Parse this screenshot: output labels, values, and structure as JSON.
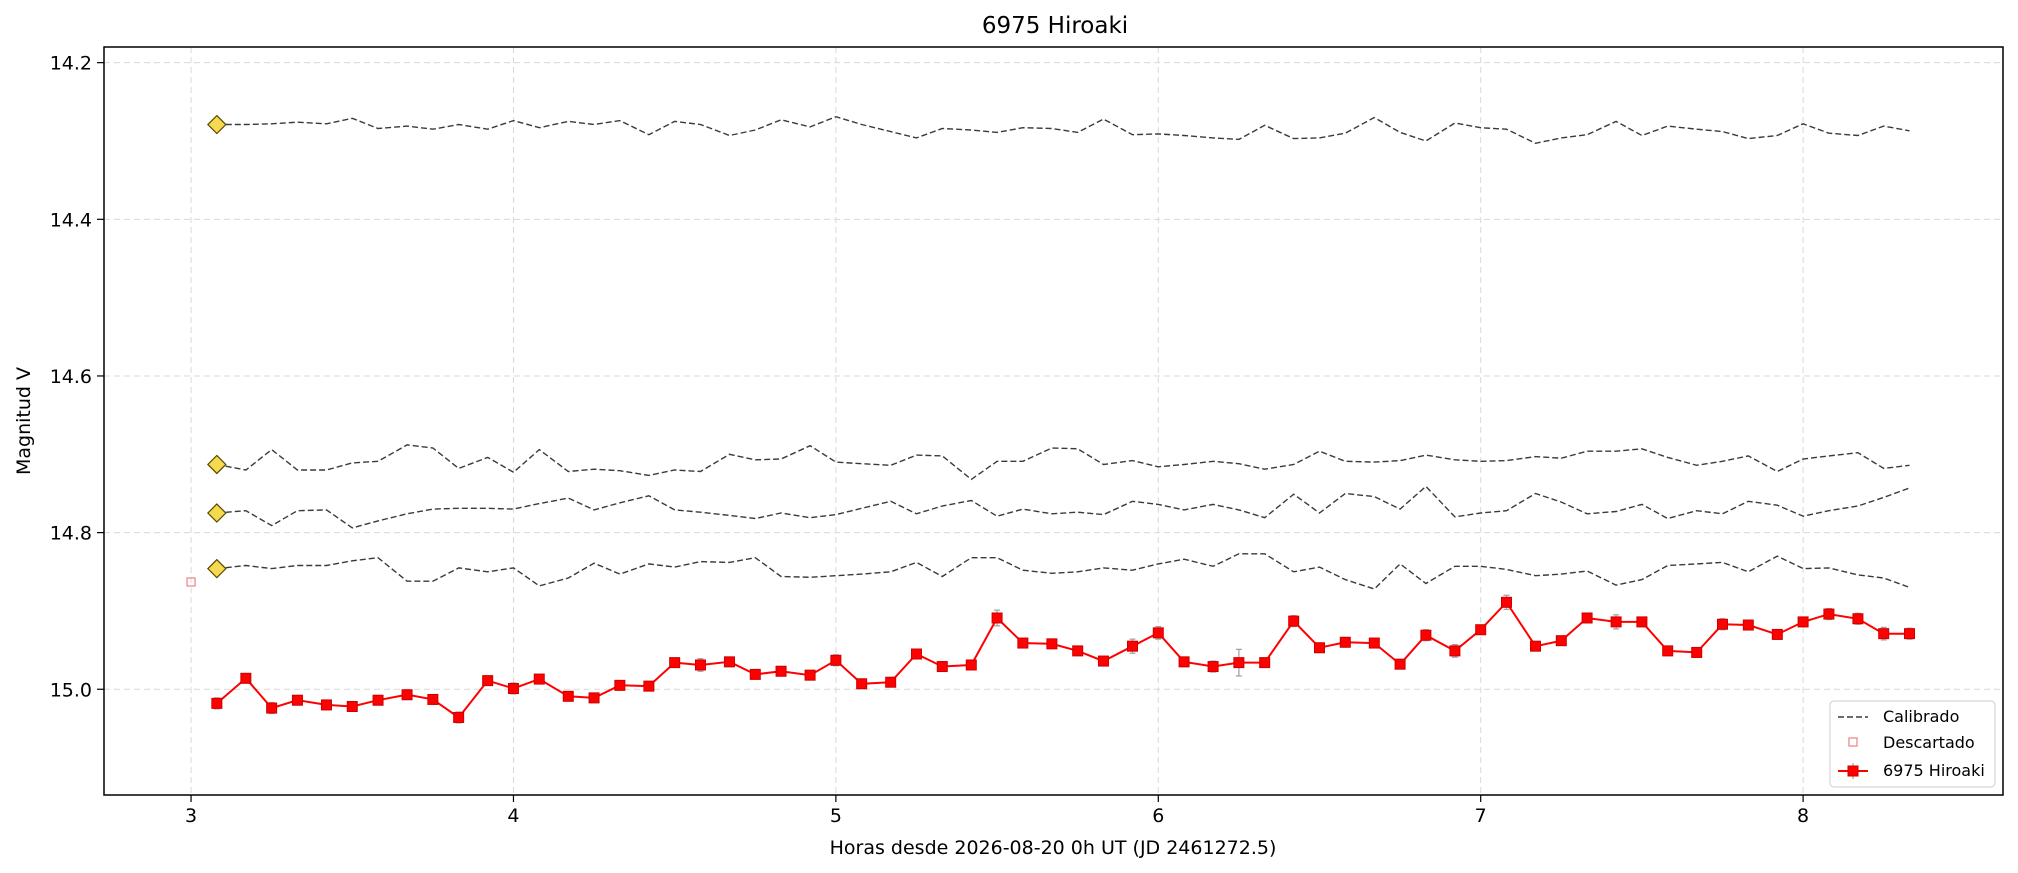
{
  "chart_data": {
    "type": "line",
    "title": "6975 Hiroaki",
    "xlabel": "Horas desde 2026-08-20 0h UT (JD 2461272.5)",
    "ylabel": "Magnitud V",
    "xlim": [
      2.73,
      8.62
    ],
    "ylim": [
      15.135,
      14.18
    ],
    "y_inverted": true,
    "xticks": [
      "3",
      "4",
      "5",
      "6",
      "7",
      "8"
    ],
    "yticks": [
      "14.2",
      "14.4",
      "14.6",
      "14.8",
      "15.0"
    ],
    "grid": true,
    "legend_position": "lower right",
    "colors": {
      "calibrated": "#3a3a3a",
      "discarded": "#f08080",
      "target": "#ff0000",
      "star_marker": "#f5d94e",
      "errorbar": "#9e9e9e"
    },
    "x": [
      3.08,
      3.17,
      3.25,
      3.33,
      3.42,
      3.5,
      3.58,
      3.67,
      3.75,
      3.83,
      3.92,
      4.0,
      4.08,
      4.17,
      4.25,
      4.33,
      4.42,
      4.5,
      4.58,
      4.67,
      4.75,
      4.83,
      4.92,
      5.0,
      5.08,
      5.17,
      5.25,
      5.33,
      5.42,
      5.5,
      5.58,
      5.67,
      5.75,
      5.83,
      5.92,
      6.0,
      6.08,
      6.17,
      6.25,
      6.33,
      6.42,
      6.5,
      6.58,
      6.67,
      6.75,
      6.83,
      6.92,
      7.0,
      7.08,
      7.17,
      7.25,
      7.33,
      7.42,
      7.5,
      7.58,
      7.67,
      7.75,
      7.83,
      7.92,
      8.0,
      8.08,
      8.17,
      8.25,
      8.33
    ],
    "series": [
      {
        "name": "Calibrado",
        "style": "dashed",
        "values": [
          14.279,
          14.279,
          14.278,
          14.276,
          14.278,
          14.271,
          14.284,
          14.281,
          14.285,
          14.279,
          14.285,
          14.274,
          14.283,
          14.275,
          14.279,
          14.274,
          14.292,
          14.275,
          14.279,
          14.293,
          14.286,
          14.273,
          14.282,
          14.269,
          14.279,
          14.288,
          14.296,
          14.284,
          14.286,
          14.289,
          14.283,
          14.284,
          14.289,
          14.272,
          14.292,
          14.291,
          14.293,
          14.296,
          14.298,
          14.28,
          14.297,
          14.296,
          14.29,
          14.27,
          14.289,
          14.3,
          14.277,
          14.283,
          14.285,
          14.303,
          14.296,
          14.292,
          14.275,
          14.293,
          14.281,
          14.285,
          14.288,
          14.297,
          14.293,
          14.278,
          14.29,
          14.293,
          14.281,
          14.287
        ]
      },
      {
        "name": "",
        "style": "dashed",
        "values": [
          14.713,
          14.72,
          14.694,
          14.72,
          14.72,
          14.711,
          14.709,
          14.688,
          14.692,
          14.718,
          14.704,
          14.723,
          14.694,
          14.722,
          14.719,
          14.721,
          14.727,
          14.72,
          14.722,
          14.7,
          14.707,
          14.706,
          14.689,
          14.71,
          14.712,
          14.714,
          14.701,
          14.702,
          14.732,
          14.709,
          14.709,
          14.692,
          14.693,
          14.713,
          14.708,
          14.716,
          14.713,
          14.709,
          14.712,
          14.719,
          14.713,
          14.696,
          14.709,
          14.71,
          14.708,
          14.701,
          14.707,
          14.709,
          14.708,
          14.703,
          14.705,
          14.696,
          14.696,
          14.693,
          14.704,
          14.714,
          14.709,
          14.702,
          14.722,
          14.706,
          14.702,
          14.698,
          14.718,
          14.714
        ]
      },
      {
        "name": "",
        "style": "dashed",
        "values": [
          14.775,
          14.772,
          14.791,
          14.772,
          14.771,
          14.794,
          14.785,
          14.776,
          14.77,
          14.769,
          14.769,
          14.77,
          14.763,
          14.756,
          14.771,
          14.762,
          14.753,
          14.771,
          14.774,
          14.778,
          14.782,
          14.775,
          14.781,
          14.777,
          14.769,
          14.76,
          14.776,
          14.766,
          14.759,
          14.779,
          14.77,
          14.776,
          14.774,
          14.777,
          14.76,
          14.764,
          14.771,
          14.764,
          14.771,
          14.781,
          14.751,
          14.775,
          14.75,
          14.754,
          14.77,
          14.741,
          14.78,
          14.775,
          14.772,
          14.75,
          14.761,
          14.776,
          14.773,
          14.764,
          14.782,
          14.772,
          14.776,
          14.76,
          14.765,
          14.779,
          14.772,
          14.766,
          14.755,
          14.743
        ]
      },
      {
        "name": "",
        "style": "dashed",
        "values": [
          14.846,
          14.842,
          14.846,
          14.842,
          14.842,
          14.836,
          14.832,
          14.862,
          14.862,
          14.845,
          14.85,
          14.845,
          14.868,
          14.858,
          14.839,
          14.853,
          14.84,
          14.844,
          14.837,
          14.838,
          14.832,
          14.856,
          14.857,
          14.855,
          14.853,
          14.85,
          14.838,
          14.856,
          14.832,
          14.832,
          14.848,
          14.852,
          14.85,
          14.845,
          14.848,
          14.84,
          14.834,
          14.843,
          14.827,
          14.827,
          14.85,
          14.844,
          14.86,
          14.872,
          14.84,
          14.865,
          14.843,
          14.843,
          14.847,
          14.855,
          14.853,
          14.849,
          14.867,
          14.86,
          14.842,
          14.84,
          14.838,
          14.85,
          14.83,
          14.846,
          14.845,
          14.854,
          14.858,
          14.87
        ]
      },
      {
        "name": "6975 Hiroaki",
        "style": "solid",
        "values": [
          15.018,
          14.986,
          15.024,
          15.014,
          15.02,
          15.022,
          15.014,
          15.007,
          15.013,
          15.036,
          14.989,
          14.999,
          14.987,
          15.009,
          15.011,
          14.995,
          14.996,
          14.966,
          14.969,
          14.965,
          14.981,
          14.977,
          14.982,
          14.963,
          14.993,
          14.991,
          14.955,
          14.971,
          14.969,
          14.909,
          14.941,
          14.942,
          14.951,
          14.964,
          14.945,
          14.928,
          14.965,
          14.971,
          14.966,
          14.966,
          14.913,
          14.947,
          14.94,
          14.941,
          14.968,
          14.931,
          14.951,
          14.924,
          14.889,
          14.945,
          14.938,
          14.909,
          14.914,
          14.914,
          14.951,
          14.953,
          14.917,
          14.918,
          14.93,
          14.914,
          14.904,
          14.91,
          14.929,
          14.929
        ],
        "errors": [
          0.007,
          0.006,
          0.007,
          0.006,
          0.006,
          0.006,
          0.006,
          0.006,
          0.006,
          0.007,
          0.006,
          0.007,
          0.006,
          0.006,
          0.006,
          0.006,
          0.006,
          0.006,
          0.008,
          0.006,
          0.006,
          0.006,
          0.006,
          0.007,
          0.006,
          0.006,
          0.006,
          0.006,
          0.006,
          0.01,
          0.006,
          0.006,
          0.006,
          0.006,
          0.009,
          0.008,
          0.006,
          0.007,
          0.017,
          0.006,
          0.007,
          0.006,
          0.006,
          0.006,
          0.006,
          0.007,
          0.008,
          0.006,
          0.009,
          0.006,
          0.006,
          0.006,
          0.009,
          0.006,
          0.006,
          0.006,
          0.007,
          0.006,
          0.006,
          0.006,
          0.007,
          0.007,
          0.008,
          0.007
        ]
      }
    ],
    "reference_star_markers": {
      "x": 3.08,
      "values": [
        14.279,
        14.713,
        14.775,
        14.846
      ]
    },
    "discarded_points": {
      "name": "Descartado",
      "x": [
        3.0
      ],
      "values": [
        14.863
      ]
    },
    "legend": [
      "Calibrado",
      "Descartado",
      "6975 Hiroaki"
    ]
  }
}
